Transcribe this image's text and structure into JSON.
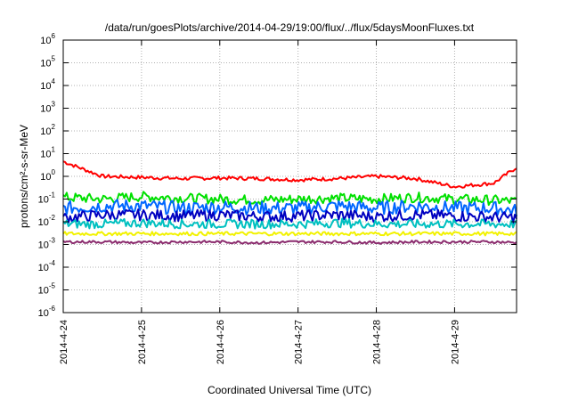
{
  "chart_data": {
    "type": "line",
    "title": "/data/run/goesPlots/archive/2014-04-29/19:00/flux/../flux/5daysMoonFluxes.txt",
    "xlabel": "Coordinated Universal Time (UTC)",
    "ylabel": "protons/cm²-s-sr-MeV",
    "y_scale": "log",
    "ylim": [
      1e-06,
      1000000.0
    ],
    "xlim": [
      "2014-04-24 00:00",
      "2014-04-29 19:00"
    ],
    "x_ticks": [
      "2014-4-24",
      "2014-4-25",
      "2014-4-26",
      "2014-4-27",
      "2014-4-28",
      "2014-4-29"
    ],
    "y_ticks": [
      {
        "base": "10",
        "exp": "-6",
        "value": 1e-06
      },
      {
        "base": "10",
        "exp": "-5",
        "value": 1e-05
      },
      {
        "base": "10",
        "exp": "-4",
        "value": 0.0001
      },
      {
        "base": "10",
        "exp": "-3",
        "value": 0.001
      },
      {
        "base": "10",
        "exp": "-2",
        "value": 0.01
      },
      {
        "base": "10",
        "exp": "-1",
        "value": 0.1
      },
      {
        "base": "10",
        "exp": "0",
        "value": 1
      },
      {
        "base": "10",
        "exp": "1",
        "value": 10
      },
      {
        "base": "10",
        "exp": "2",
        "value": 100
      },
      {
        "base": "10",
        "exp": "3",
        "value": 1000
      },
      {
        "base": "10",
        "exp": "4",
        "value": 10000
      },
      {
        "base": "10",
        "exp": "5",
        "value": 100000
      },
      {
        "base": "10",
        "exp": "6",
        "value": 1000000
      }
    ],
    "grid": true,
    "legend": "none",
    "x": [
      "2014-04-24 00:00",
      "2014-04-24 12:00",
      "2014-04-25 00:00",
      "2014-04-25 12:00",
      "2014-04-26 00:00",
      "2014-04-26 12:00",
      "2014-04-27 00:00",
      "2014-04-27 12:00",
      "2014-04-28 00:00",
      "2014-04-28 12:00",
      "2014-04-29 00:00",
      "2014-04-29 12:00",
      "2014-04-29 19:00"
    ],
    "series": [
      {
        "color": "#ff0000",
        "values": [
          4.5,
          1.0,
          0.9,
          0.8,
          0.85,
          0.8,
          0.7,
          0.8,
          1.0,
          0.8,
          0.35,
          0.5,
          2.5
        ]
      },
      {
        "color": "#00e000",
        "values": [
          0.12,
          0.1,
          0.13,
          0.11,
          0.1,
          0.09,
          0.1,
          0.11,
          0.1,
          0.12,
          0.1,
          0.09,
          0.08
        ]
      },
      {
        "color": "#0066ff",
        "values": [
          0.04,
          0.05,
          0.05,
          0.04,
          0.045,
          0.04,
          0.04,
          0.05,
          0.04,
          0.05,
          0.04,
          0.04,
          0.03
        ]
      },
      {
        "color": "#0000c0",
        "values": [
          0.015,
          0.02,
          0.02,
          0.018,
          0.02,
          0.017,
          0.018,
          0.02,
          0.017,
          0.02,
          0.018,
          0.016,
          0.015
        ]
      },
      {
        "color": "#00c0c0",
        "values": [
          0.008,
          0.008,
          0.009,
          0.008,
          0.008,
          0.008,
          0.008,
          0.009,
          0.008,
          0.008,
          0.008,
          0.008,
          0.008
        ]
      },
      {
        "color": "#f2f200",
        "values": [
          0.003,
          0.003,
          0.003,
          0.003,
          0.003,
          0.003,
          0.003,
          0.003,
          0.003,
          0.003,
          0.003,
          0.003,
          0.003
        ]
      },
      {
        "color": "#8b2c6e",
        "values": [
          0.0013,
          0.0013,
          0.0012,
          0.0013,
          0.0013,
          0.0012,
          0.0013,
          0.0013,
          0.0012,
          0.0013,
          0.0013,
          0.0013,
          0.0012
        ]
      }
    ]
  }
}
